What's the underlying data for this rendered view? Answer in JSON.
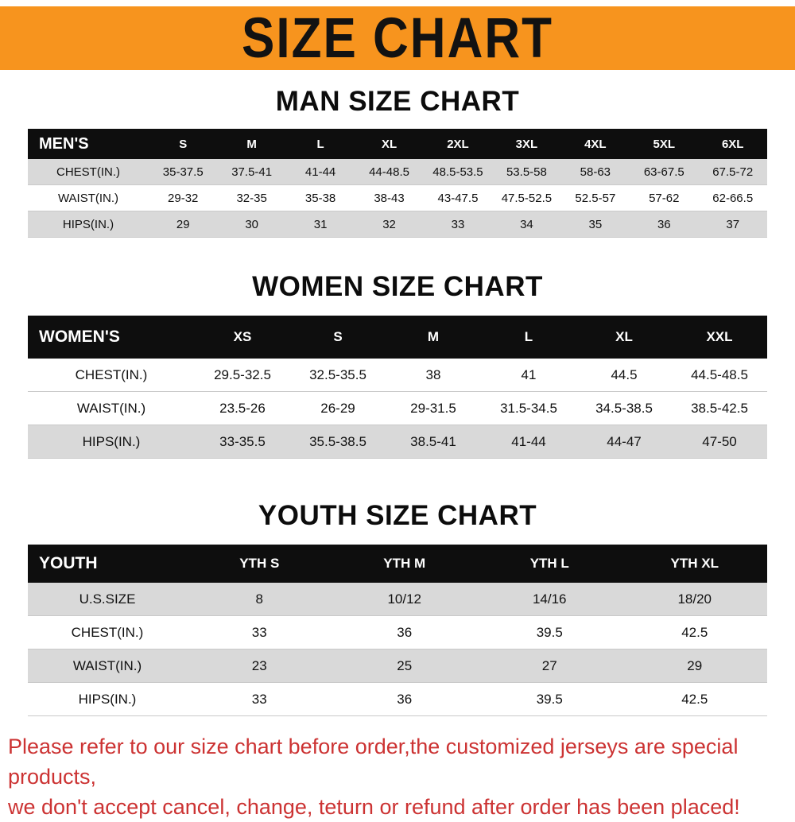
{
  "banner": {
    "title": "SIZE CHART"
  },
  "colors": {
    "banner_bg": "#F7941E",
    "table_header_bg": "#0e0e0e",
    "row_shade": "#d9d9d9",
    "footer_text": "#cc3333"
  },
  "men": {
    "heading": "MAN SIZE CHART",
    "table": {
      "label": "MEN'S",
      "columns": [
        "S",
        "M",
        "L",
        "XL",
        "2XL",
        "3XL",
        "4XL",
        "5XL",
        "6XL"
      ],
      "rows": [
        {
          "label": "CHEST(IN.)",
          "values": [
            "35-37.5",
            "37.5-41",
            "41-44",
            "44-48.5",
            "48.5-53.5",
            "53.5-58",
            "58-63",
            "63-67.5",
            "67.5-72"
          ]
        },
        {
          "label": "WAIST(IN.)",
          "values": [
            "29-32",
            "32-35",
            "35-38",
            "38-43",
            "43-47.5",
            "47.5-52.5",
            "52.5-57",
            "57-62",
            "62-66.5"
          ]
        },
        {
          "label": "HIPS(IN.)",
          "values": [
            "29",
            "30",
            "31",
            "32",
            "33",
            "34",
            "35",
            "36",
            "37"
          ]
        }
      ]
    }
  },
  "women": {
    "heading": "WOMEN SIZE CHART",
    "table": {
      "label": "WOMEN'S",
      "columns": [
        "XS",
        "S",
        "M",
        "L",
        "XL",
        "XXL"
      ],
      "rows": [
        {
          "label": "CHEST(IN.)",
          "values": [
            "29.5-32.5",
            "32.5-35.5",
            "38",
            "41",
            "44.5",
            "44.5-48.5"
          ]
        },
        {
          "label": "WAIST(IN.)",
          "values": [
            "23.5-26",
            "26-29",
            "29-31.5",
            "31.5-34.5",
            "34.5-38.5",
            "38.5-42.5"
          ]
        },
        {
          "label": "HIPS(IN.)",
          "values": [
            "33-35.5",
            "35.5-38.5",
            "38.5-41",
            "41-44",
            "44-47",
            "47-50"
          ]
        }
      ]
    }
  },
  "youth": {
    "heading": "YOUTH SIZE CHART",
    "table": {
      "label": "YOUTH",
      "columns": [
        "YTH S",
        "YTH M",
        "YTH L",
        "YTH XL"
      ],
      "rows": [
        {
          "label": "U.S.SIZE",
          "values": [
            "8",
            "10/12",
            "14/16",
            "18/20"
          ]
        },
        {
          "label": "CHEST(IN.)",
          "values": [
            "33",
            "36",
            "39.5",
            "42.5"
          ]
        },
        {
          "label": "WAIST(IN.)",
          "values": [
            "23",
            "25",
            "27",
            "29"
          ]
        },
        {
          "label": "HIPS(IN.)",
          "values": [
            "33",
            "36",
            "39.5",
            "42.5"
          ]
        }
      ]
    }
  },
  "footer": {
    "line1": "Please refer to our size chart before order,the customized jerseys are special products,",
    "line2": "we don't accept cancel, change, teturn or refund after order has been placed!"
  }
}
